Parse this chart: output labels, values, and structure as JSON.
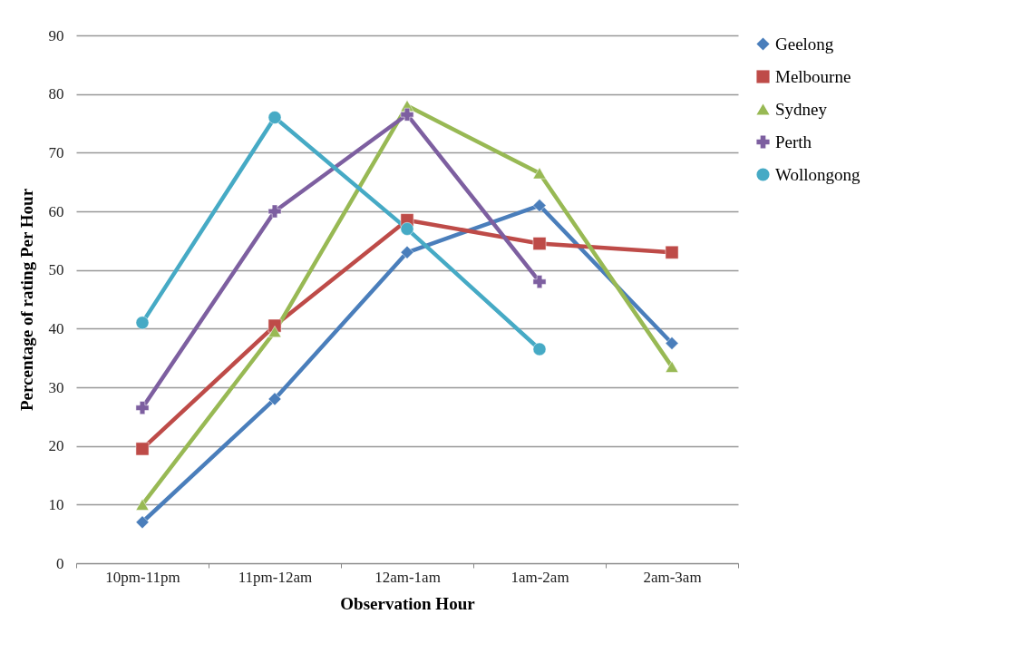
{
  "chart_data": {
    "type": "line",
    "xlabel": "Observation Hour",
    "ylabel": "Percentage of rating Per Hour",
    "categories": [
      "10pm-11pm",
      "11pm-12am",
      "12am-1am",
      "1am-2am",
      "2am-3am"
    ],
    "ylim": [
      0,
      90
    ],
    "yticks": [
      0,
      10,
      20,
      30,
      40,
      50,
      60,
      70,
      80,
      90
    ],
    "grid": "y",
    "legend": "right",
    "series": [
      {
        "name": "Geelong",
        "color": "#4a7ebb",
        "marker": "diamond",
        "values": [
          7,
          28,
          53,
          61,
          37.5
        ]
      },
      {
        "name": "Melbourne",
        "color": "#be4b48",
        "marker": "square",
        "values": [
          19.5,
          40.5,
          58.5,
          54.5,
          53
        ]
      },
      {
        "name": "Sydney",
        "color": "#98b954",
        "marker": "triangle",
        "values": [
          10,
          39.5,
          78,
          66.5,
          33.5
        ]
      },
      {
        "name": "Perth",
        "color": "#7d5fa0",
        "marker": "cross",
        "values": [
          26.5,
          60,
          76.5,
          48,
          null
        ]
      },
      {
        "name": "Wollongong",
        "color": "#46aac5",
        "marker": "circle",
        "values": [
          41,
          76,
          57,
          36.5,
          null
        ]
      }
    ]
  }
}
